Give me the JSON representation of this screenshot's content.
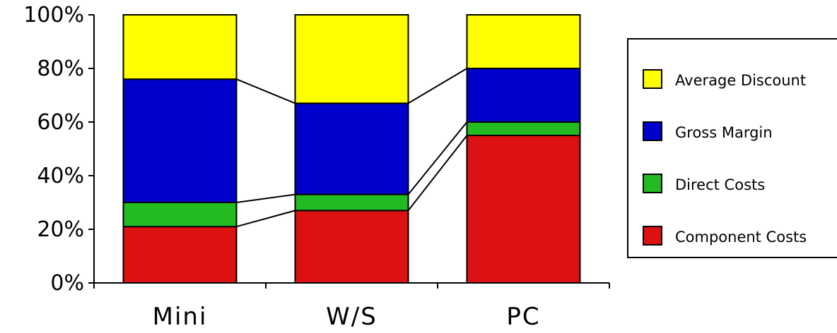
{
  "chart_data": {
    "type": "bar",
    "stacked": true,
    "normalized": true,
    "categories": [
      "Mini",
      "W/S",
      "PC"
    ],
    "series": [
      {
        "name": "Component Costs",
        "color": "#dd1111",
        "values": [
          21,
          27,
          55
        ]
      },
      {
        "name": "Direct Costs",
        "color": "#22bb22",
        "values": [
          9,
          6,
          5
        ]
      },
      {
        "name": "Gross Margin",
        "color": "#0000cc",
        "values": [
          46,
          34,
          20
        ]
      },
      {
        "name": "Average Discount",
        "color": "#ffff00",
        "values": [
          24,
          33,
          20
        ]
      }
    ],
    "y_ticks": [
      "0%",
      "20%",
      "40%",
      "60%",
      "80%",
      "100%"
    ],
    "ylim": [
      0,
      100
    ],
    "legend_order": [
      "Average Discount",
      "Gross Margin",
      "Direct Costs",
      "Component Costs"
    ],
    "legend_position": "right",
    "series_lines": true,
    "grid": false
  }
}
